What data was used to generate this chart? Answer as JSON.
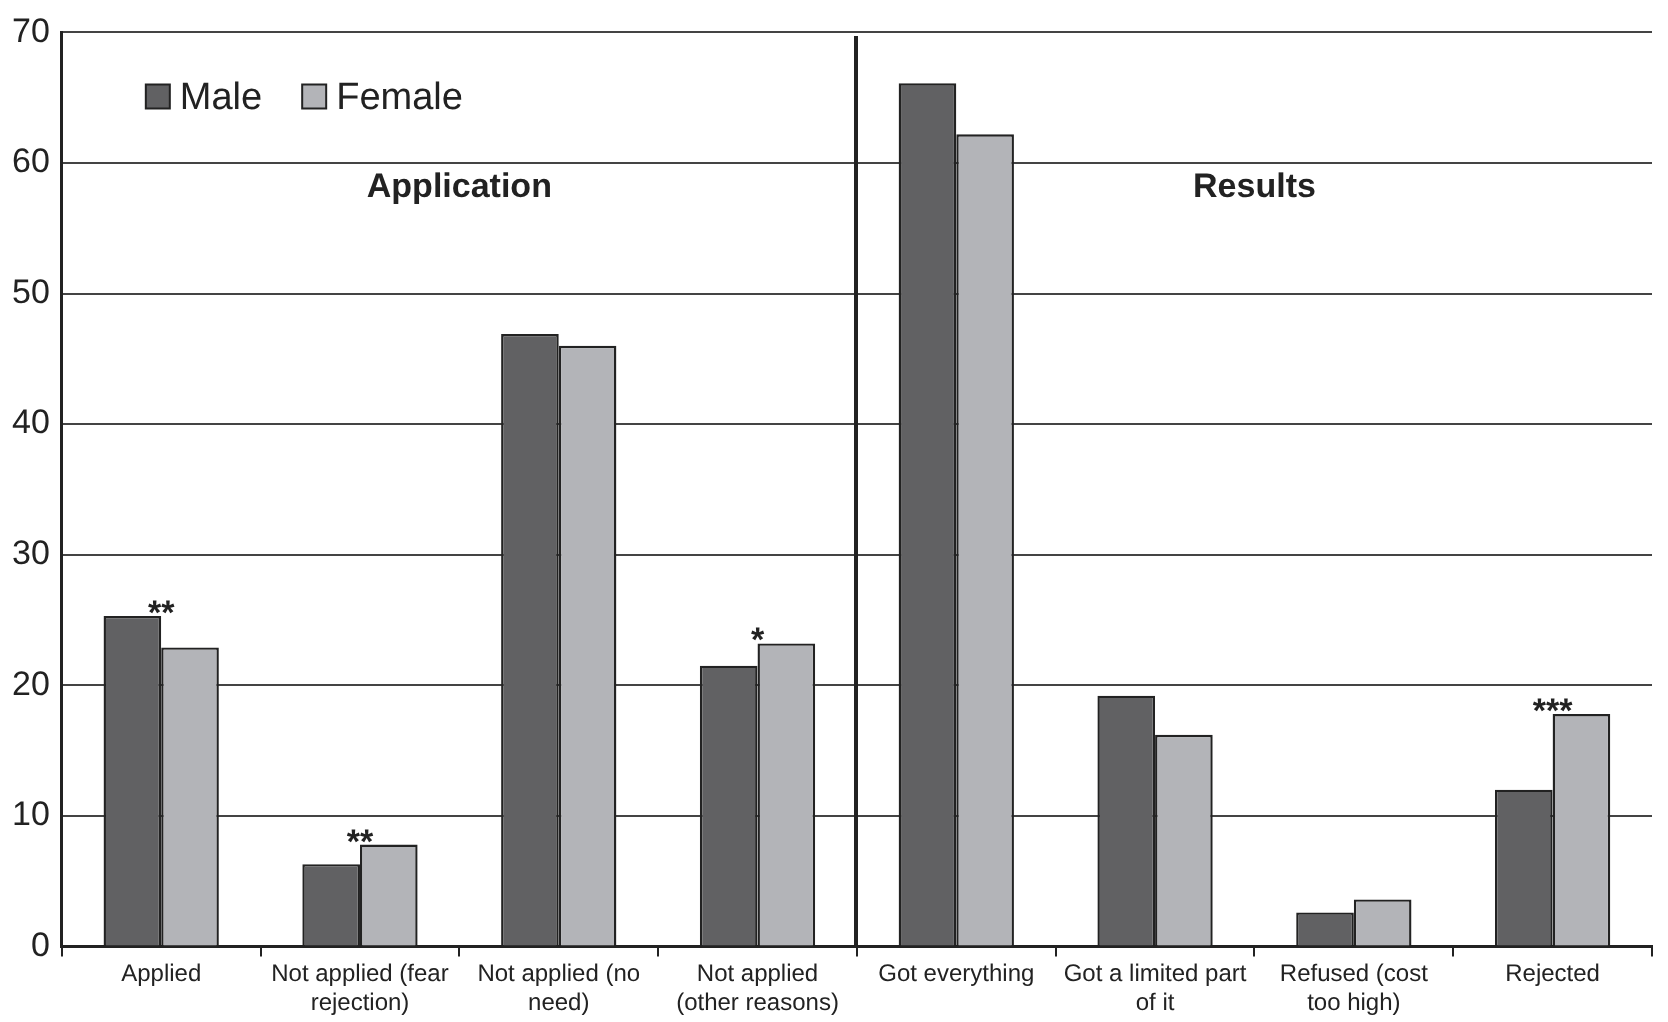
{
  "chart_data": {
    "type": "bar",
    "categories": [
      "Applied",
      "Not applied (fear rejection)",
      "Not applied (no need)",
      "Not applied (other reasons)",
      "Got everything",
      "Got a limited part of it",
      "Refused (cost too high)",
      "Rejected"
    ],
    "series": [
      {
        "name": "Male",
        "color": "#616163",
        "values": [
          25.3,
          6.3,
          46.9,
          21.5,
          66.1,
          19.2,
          2.6,
          12.0
        ]
      },
      {
        "name": "Female",
        "color": "#b3b4b8",
        "values": [
          22.9,
          7.8,
          46.0,
          23.2,
          62.2,
          16.2,
          3.6,
          17.8
        ]
      }
    ],
    "annotations": [
      "Application",
      "Results",
      {
        "text": "**",
        "x": "Applied",
        "y": 25.3
      },
      {
        "text": "**",
        "x": "Not applied (fear rejection)",
        "y": 7.8
      },
      {
        "text": "*",
        "x": "Not applied (other reasons)",
        "y": 23.2
      },
      {
        "text": "***",
        "x": "Rejected",
        "y": 17.8
      }
    ],
    "ylim": [
      0,
      70
    ],
    "yticks": [
      0,
      10,
      20,
      30,
      40,
      50,
      60,
      70
    ],
    "grid": "y",
    "legend": "top left"
  }
}
